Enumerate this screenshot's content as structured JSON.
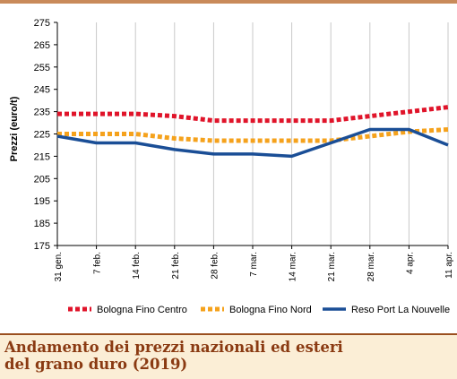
{
  "caption": {
    "line1": "Andamento dei prezzi nazionali ed esteri",
    "line2": "del grano duro (2019)"
  },
  "chart_data": {
    "type": "line",
    "title": "",
    "ylabel": "Prezzi (euro/t)",
    "xlabel": "",
    "ylim": [
      175,
      275
    ],
    "yticks": [
      "175",
      "185",
      "195",
      "205",
      "215",
      "225",
      "235",
      "245",
      "255",
      "265",
      "275"
    ],
    "categories": [
      "31 gen.",
      "7 feb.",
      "14 feb.",
      "21 feb.",
      "28 feb.",
      "7 mar.",
      "14 mar.",
      "21 mar.",
      "28 mar.",
      "4 apr.",
      "11 apr."
    ],
    "series": [
      {
        "name": "Bologna Fino Centro",
        "color": "#e0142a",
        "style": "dotted",
        "values": [
          234,
          234,
          234,
          233,
          231,
          231,
          231,
          231,
          233,
          235,
          237
        ]
      },
      {
        "name": "Bologna Fino Nord",
        "color": "#f5a21c",
        "style": "dotted",
        "values": [
          225,
          225,
          225,
          223,
          222,
          222,
          222,
          222,
          224,
          226,
          227
        ]
      },
      {
        "name": "Reso Port La Nouvelle",
        "color": "#1a4e96",
        "style": "solid",
        "values": [
          224,
          221,
          221,
          218,
          216,
          216,
          215,
          221,
          227,
          227,
          220
        ]
      }
    ],
    "grid": "vertical",
    "legend": "bottom"
  }
}
